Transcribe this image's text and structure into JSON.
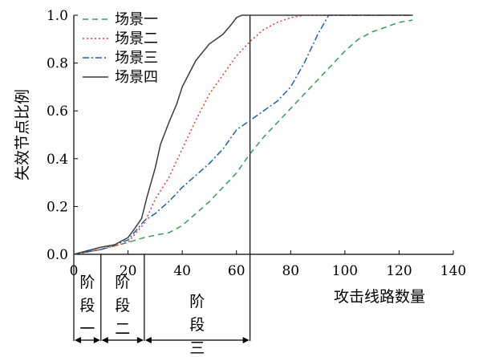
{
  "chart_data": {
    "type": "line",
    "title": "",
    "xlabel": "攻击线路数量",
    "ylabel": "失效节点比例",
    "xlim": [
      0,
      140
    ],
    "ylim": [
      0,
      1.0
    ],
    "xticks": [
      "0",
      "20",
      "40",
      "60",
      "80",
      "100",
      "120",
      "140"
    ],
    "yticks": [
      "0.0",
      "0.2",
      "0.4",
      "0.6",
      "0.8",
      "1.0"
    ],
    "grid": false,
    "legend_position": "top-left",
    "stages": [
      {
        "label": [
          "阶",
          "段",
          "一"
        ],
        "x_start": 0,
        "x_end": 10
      },
      {
        "label": [
          "阶",
          "段",
          "二"
        ],
        "x_start": 10,
        "x_end": 26
      },
      {
        "label": [
          "阶",
          "段",
          "三"
        ],
        "x_start": 26,
        "x_end": 65
      }
    ],
    "series": [
      {
        "name": "场景一",
        "color": "#3a9a55",
        "dash": "dashed",
        "x": [
          0,
          10,
          20,
          26,
          30,
          35,
          40,
          45,
          50,
          55,
          60,
          65,
          70,
          75,
          80,
          85,
          90,
          95,
          100,
          105,
          110,
          115,
          120,
          125
        ],
        "y": [
          0,
          0.02,
          0.05,
          0.07,
          0.08,
          0.09,
          0.12,
          0.17,
          0.22,
          0.28,
          0.34,
          0.42,
          0.49,
          0.55,
          0.61,
          0.67,
          0.73,
          0.79,
          0.85,
          0.9,
          0.93,
          0.95,
          0.97,
          0.98
        ]
      },
      {
        "name": "场景二",
        "color": "#e63a2e",
        "dash": "dotted",
        "x": [
          0,
          10,
          20,
          26,
          30,
          35,
          40,
          45,
          50,
          55,
          60,
          65,
          70,
          75,
          80,
          85,
          90,
          125
        ],
        "y": [
          0,
          0.02,
          0.05,
          0.13,
          0.23,
          0.32,
          0.44,
          0.56,
          0.67,
          0.75,
          0.83,
          0.89,
          0.94,
          0.97,
          0.99,
          1.0,
          1.0,
          1.0
        ]
      },
      {
        "name": "场景三",
        "color": "#1f5fb0",
        "dash": "dashdot",
        "x": [
          0,
          10,
          20,
          26,
          30,
          35,
          40,
          45,
          50,
          55,
          60,
          65,
          70,
          75,
          80,
          85,
          90,
          94,
          100,
          125
        ],
        "y": [
          0,
          0.02,
          0.06,
          0.14,
          0.17,
          0.22,
          0.28,
          0.33,
          0.38,
          0.44,
          0.52,
          0.56,
          0.6,
          0.64,
          0.7,
          0.8,
          0.92,
          1.0,
          1.0,
          1.0
        ]
      },
      {
        "name": "场景四",
        "color": "#3c3c3c",
        "dash": "solid",
        "x": [
          0,
          10,
          15,
          20,
          22,
          25,
          27,
          30,
          32,
          35,
          38,
          40,
          45,
          50,
          55,
          58,
          60,
          62,
          65,
          125
        ],
        "y": [
          0,
          0.03,
          0.04,
          0.07,
          0.1,
          0.15,
          0.24,
          0.36,
          0.46,
          0.55,
          0.63,
          0.7,
          0.81,
          0.88,
          0.92,
          0.96,
          0.99,
          1.0,
          1.0,
          1.0
        ]
      }
    ]
  }
}
